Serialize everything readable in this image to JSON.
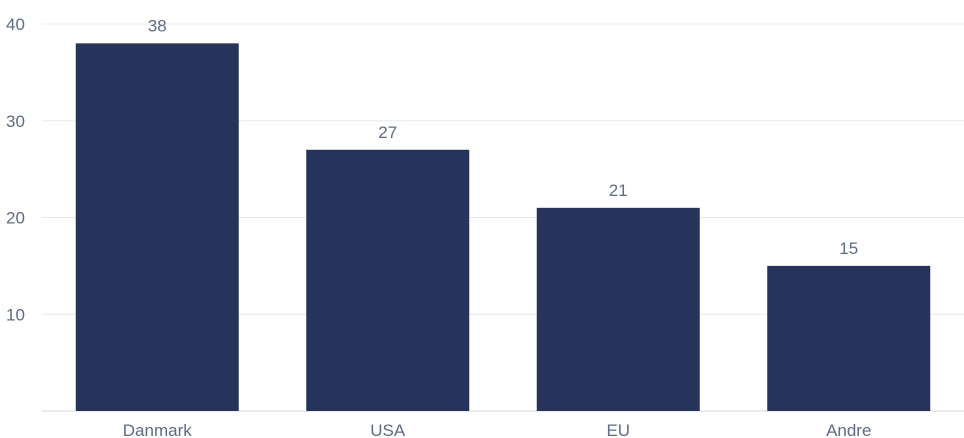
{
  "chart_data": {
    "type": "bar",
    "categories": [
      "Danmark",
      "USA",
      "EU",
      "Andre"
    ],
    "values": [
      38,
      27,
      21,
      15
    ],
    "title": "",
    "xlabel": "",
    "ylabel": "",
    "ylim": [
      0,
      40
    ],
    "yticks": [
      10,
      20,
      30,
      40
    ],
    "grid": true,
    "legend": "none",
    "colors": {
      "bar": "#26335a",
      "grid": "#e6e8ee",
      "text": "#5f6b85"
    }
  }
}
